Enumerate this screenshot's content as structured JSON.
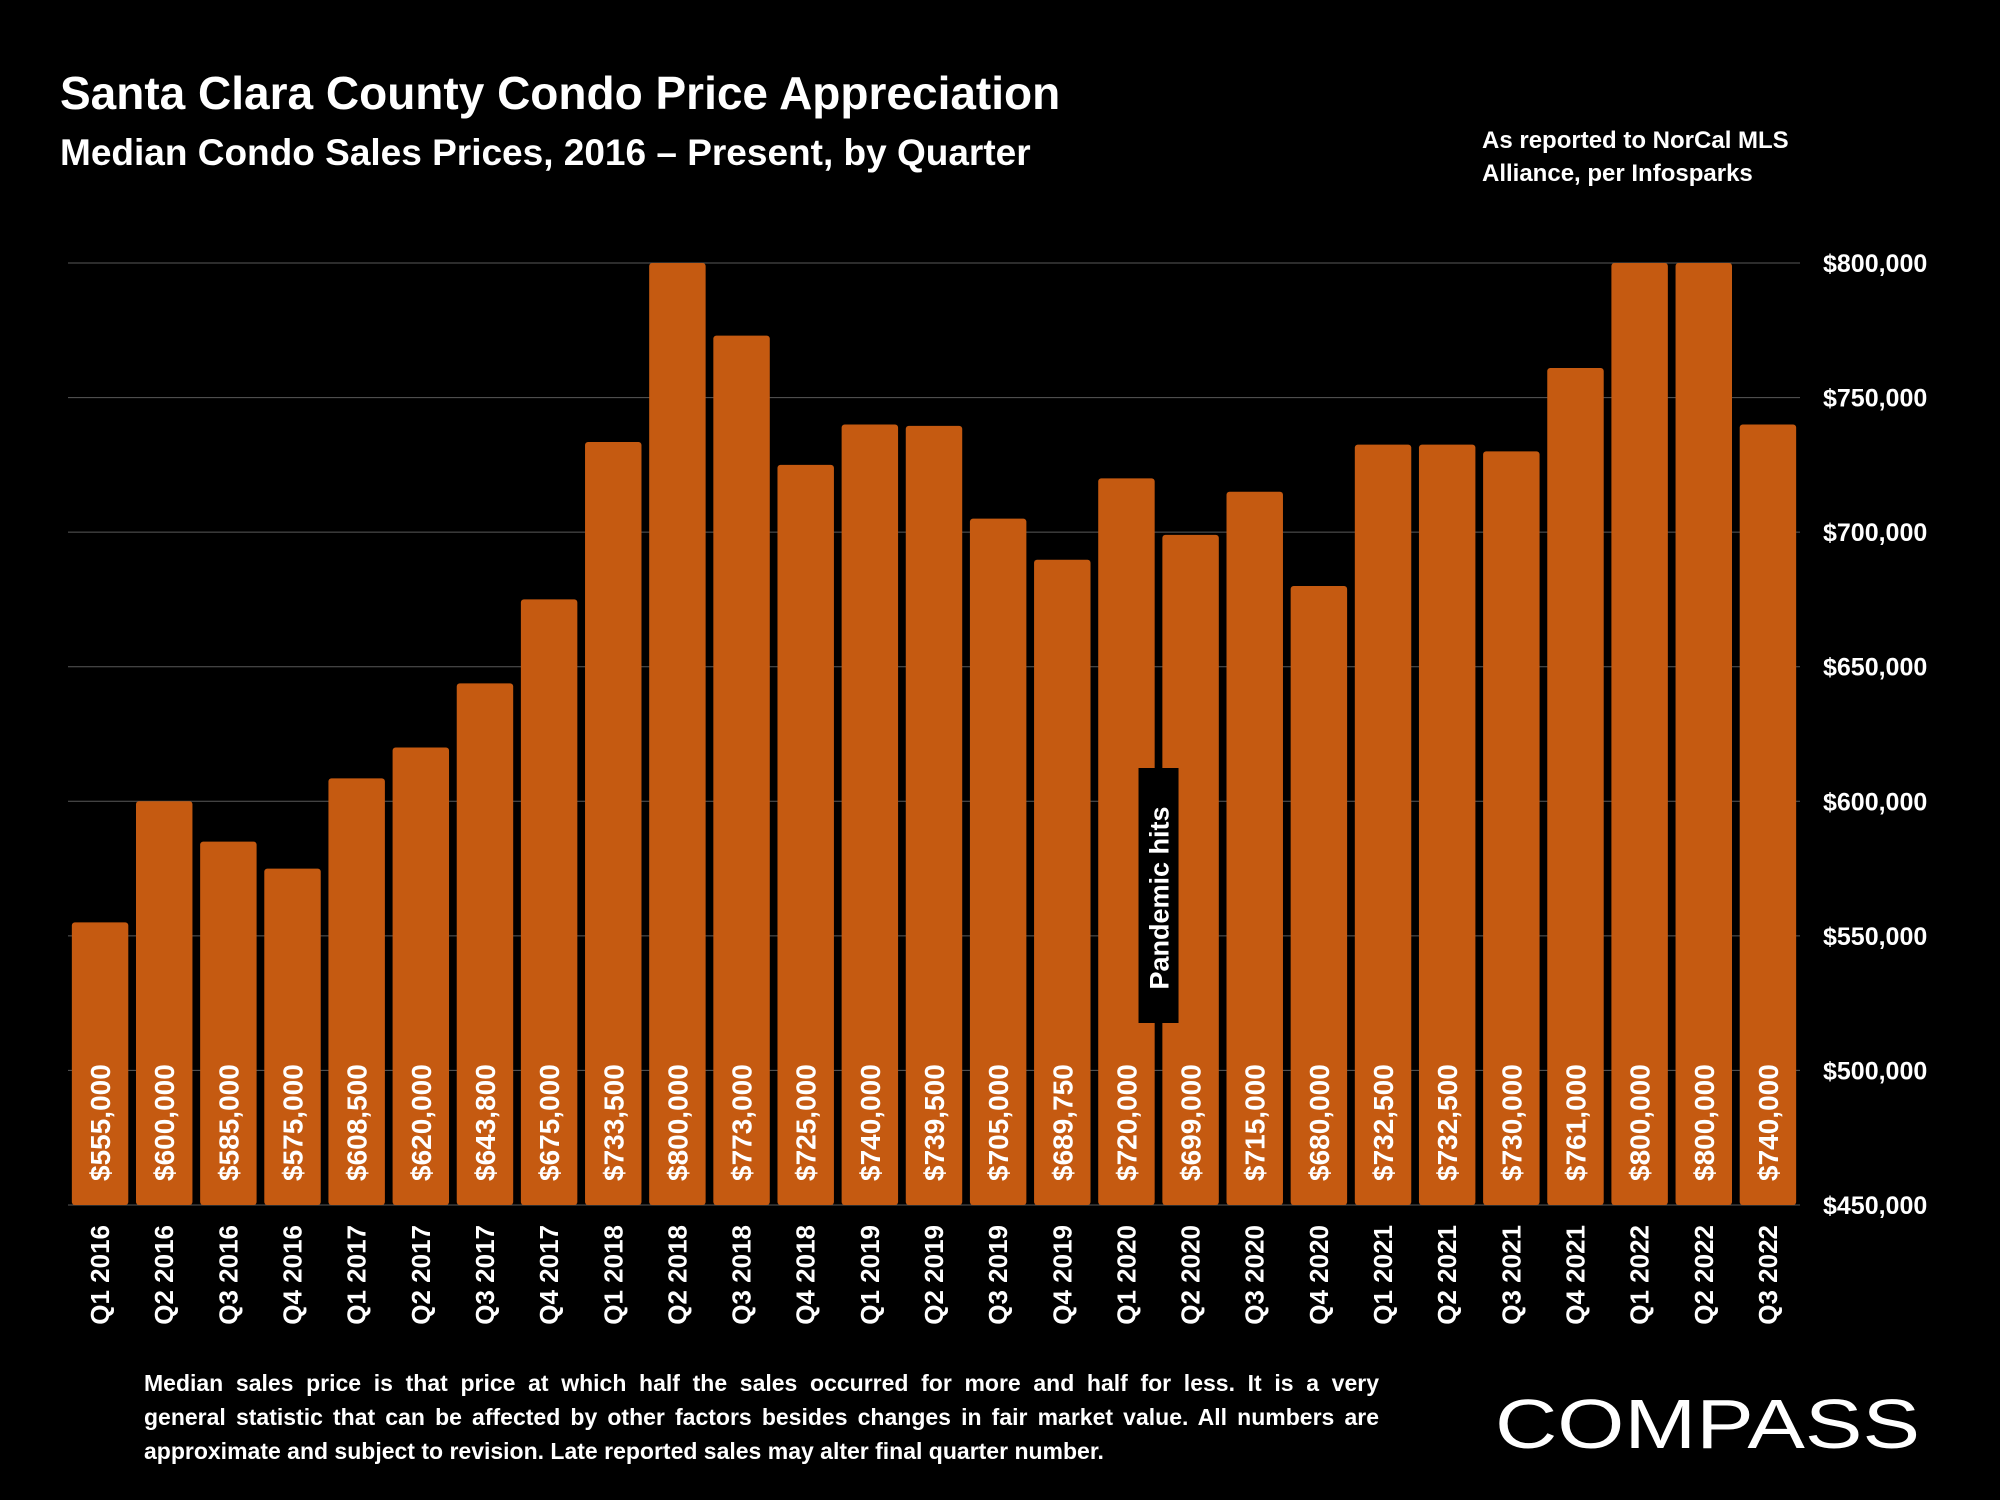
{
  "header": {
    "title": "Santa Clara County Condo Price Appreciation",
    "subtitle": "Median Condo Sales Prices, 2016 – Present, by Quarter",
    "source_lines": [
      "As reported to NorCal MLS",
      "Alliance, per Infosparks"
    ]
  },
  "footnote": {
    "lines": [
      "Median sales price is that price at which half the sales occurred for more and half for less. It is a very",
      "general statistic that can be affected by other factors besides changes in fair market value. All numbers are",
      "approximate and subject to revision. Late reported sales may alter final quarter number."
    ]
  },
  "brand": {
    "logo_text": "COMPASS"
  },
  "colors": {
    "bar": "#C55A11",
    "background": "#000000",
    "text": "#FFFFFF",
    "grid": "#595959"
  },
  "chart_data": {
    "type": "bar",
    "title": "Santa Clara County Condo Price Appreciation",
    "subtitle": "Median Condo Sales Prices, 2016 – Present, by Quarter",
    "xlabel": "",
    "ylabel": "",
    "y_axis_side": "right",
    "ylim": [
      450000,
      800000
    ],
    "yticks": [
      450000,
      500000,
      550000,
      600000,
      650000,
      700000,
      750000,
      800000
    ],
    "ytick_labels": [
      "$450,000",
      "$500,000",
      "$550,000",
      "$600,000",
      "$650,000",
      "$700,000",
      "$750,000",
      "$800,000"
    ],
    "grid": true,
    "categories": [
      "Q1 2016",
      "Q2 2016",
      "Q3 2016",
      "Q4 2016",
      "Q1 2017",
      "Q2 2017",
      "Q3 2017",
      "Q4 2017",
      "Q1 2018",
      "Q2 2018",
      "Q3 2018",
      "Q4 2018",
      "Q1 2019",
      "Q2 2019",
      "Q3 2019",
      "Q4 2019",
      "Q1 2020",
      "Q2 2020",
      "Q3 2020",
      "Q4 2020",
      "Q1 2021",
      "Q2 2021",
      "Q3 2021",
      "Q4 2021",
      "Q1 2022",
      "Q2 2022",
      "Q3 2022"
    ],
    "values": [
      555000,
      600000,
      585000,
      575000,
      608500,
      620000,
      643800,
      675000,
      733500,
      800000,
      773000,
      725000,
      740000,
      739500,
      705000,
      689750,
      720000,
      699000,
      715000,
      680000,
      732500,
      732500,
      730000,
      761000,
      800000,
      800000,
      740000
    ],
    "value_labels": [
      "$555,000",
      "$600,000",
      "$585,000",
      "$575,000",
      "$608,500",
      "$620,000",
      "$643,800",
      "$675,000",
      "$733,500",
      "$800,000",
      "$773,000",
      "$725,000",
      "$740,000",
      "$739,500",
      "$705,000",
      "$689,750",
      "$720,000",
      "$699,000",
      "$715,000",
      "$680,000",
      "$732,500",
      "$732,500",
      "$730,000",
      "$761,000",
      "$800,000",
      "$800,000",
      "$740,000"
    ],
    "annotations": [
      {
        "text": "Pandemic hits",
        "between": [
          "Q1 2020",
          "Q2 2020"
        ]
      }
    ]
  }
}
